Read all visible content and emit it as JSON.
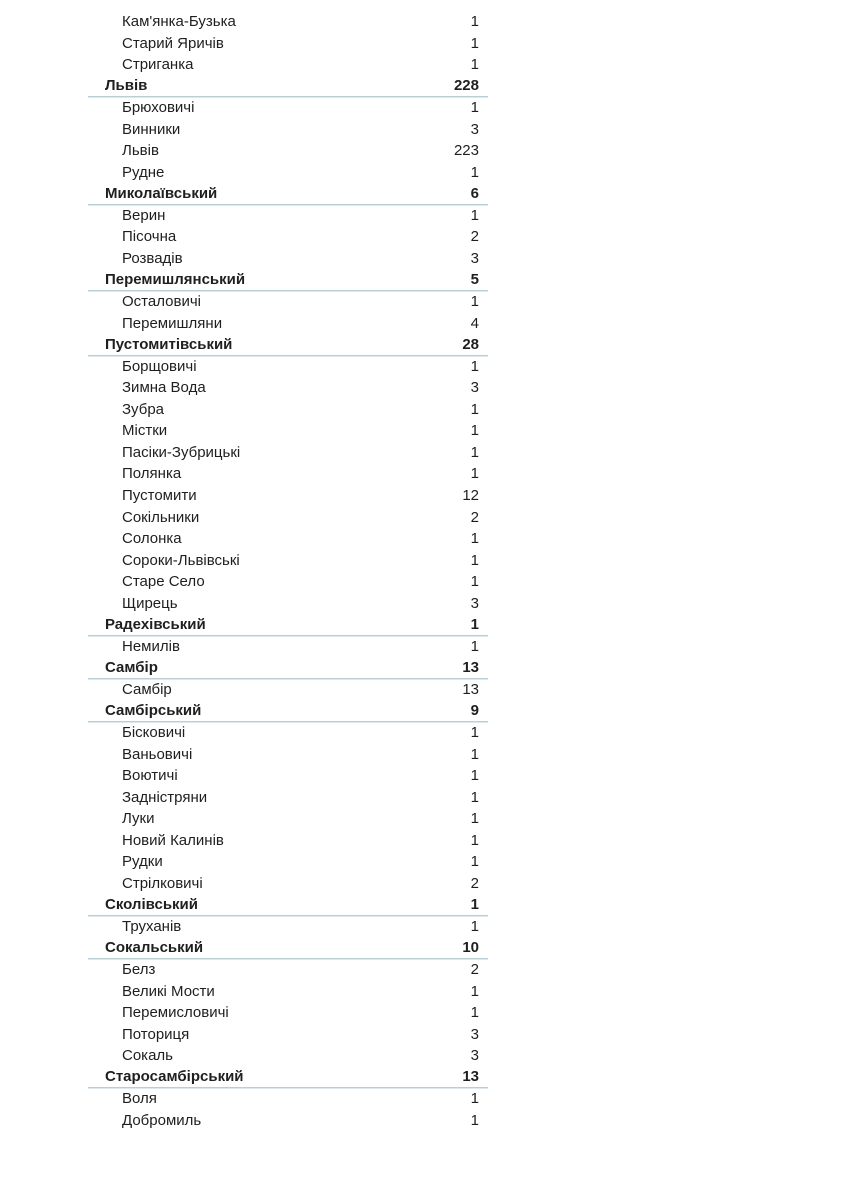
{
  "document": {
    "description": "Page of a report listing settlements of Lviv oblast districts with case counts",
    "columns": [
      "settlement",
      "count"
    ]
  },
  "colors": {
    "page_background": "#ffffff",
    "text": "#1f1f1f",
    "group_divider_dark": "#bccdd6",
    "group_divider_light": "#dde9ee"
  },
  "table": {
    "rows": [
      {
        "label": "Кам'янка-Бузька",
        "value": "1",
        "level": "item"
      },
      {
        "label": "Старий Яричів",
        "value": "1",
        "level": "item"
      },
      {
        "label": "Стриганка",
        "value": "1",
        "level": "item"
      },
      {
        "label": "Львів",
        "value": "228",
        "level": "group"
      },
      {
        "label": "Брюховичі",
        "value": "1",
        "level": "item"
      },
      {
        "label": "Винники",
        "value": "3",
        "level": "item"
      },
      {
        "label": "Львів",
        "value": "223",
        "level": "item"
      },
      {
        "label": "Рудне",
        "value": "1",
        "level": "item"
      },
      {
        "label": "Миколаївський",
        "value": "6",
        "level": "group"
      },
      {
        "label": "Верин",
        "value": "1",
        "level": "item"
      },
      {
        "label": "Пісочна",
        "value": "2",
        "level": "item"
      },
      {
        "label": "Розвадів",
        "value": "3",
        "level": "item"
      },
      {
        "label": "Перемишлянський",
        "value": "5",
        "level": "group"
      },
      {
        "label": "Осталовичі",
        "value": "1",
        "level": "item"
      },
      {
        "label": "Перемишляни",
        "value": "4",
        "level": "item"
      },
      {
        "label": "Пустомитівський",
        "value": "28",
        "level": "group"
      },
      {
        "label": "Борщовичі",
        "value": "1",
        "level": "item"
      },
      {
        "label": "Зимна Вода",
        "value": "3",
        "level": "item"
      },
      {
        "label": "Зубра",
        "value": "1",
        "level": "item"
      },
      {
        "label": "Містки",
        "value": "1",
        "level": "item"
      },
      {
        "label": "Пасіки-Зубрицькі",
        "value": "1",
        "level": "item"
      },
      {
        "label": "Полянка",
        "value": "1",
        "level": "item"
      },
      {
        "label": "Пустомити",
        "value": "12",
        "level": "item"
      },
      {
        "label": "Сокільники",
        "value": "2",
        "level": "item"
      },
      {
        "label": "Солонка",
        "value": "1",
        "level": "item"
      },
      {
        "label": "Сороки-Львівські",
        "value": "1",
        "level": "item"
      },
      {
        "label": "Старе Село",
        "value": "1",
        "level": "item"
      },
      {
        "label": "Щирець",
        "value": "3",
        "level": "item"
      },
      {
        "label": "Радехівський",
        "value": "1",
        "level": "group"
      },
      {
        "label": "Немилів",
        "value": "1",
        "level": "item"
      },
      {
        "label": "Самбір",
        "value": "13",
        "level": "group"
      },
      {
        "label": "Самбір",
        "value": "13",
        "level": "item"
      },
      {
        "label": "Самбірський",
        "value": "9",
        "level": "group"
      },
      {
        "label": "Бісковичі",
        "value": "1",
        "level": "item"
      },
      {
        "label": "Ваньовичі",
        "value": "1",
        "level": "item"
      },
      {
        "label": "Воютичі",
        "value": "1",
        "level": "item"
      },
      {
        "label": "Задністряни",
        "value": "1",
        "level": "item"
      },
      {
        "label": "Луки",
        "value": "1",
        "level": "item"
      },
      {
        "label": "Новий Калинів",
        "value": "1",
        "level": "item"
      },
      {
        "label": "Рудки",
        "value": "1",
        "level": "item"
      },
      {
        "label": "Стрілковичі",
        "value": "2",
        "level": "item"
      },
      {
        "label": "Сколівський",
        "value": "1",
        "level": "group"
      },
      {
        "label": "Труханів",
        "value": "1",
        "level": "item"
      },
      {
        "label": "Сокальський",
        "value": "10",
        "level": "group"
      },
      {
        "label": "Белз",
        "value": "2",
        "level": "item"
      },
      {
        "label": "Великі Мости",
        "value": "1",
        "level": "item"
      },
      {
        "label": "Перемисловичі",
        "value": "1",
        "level": "item"
      },
      {
        "label": "Поториця",
        "value": "3",
        "level": "item"
      },
      {
        "label": "Сокаль",
        "value": "3",
        "level": "item"
      },
      {
        "label": "Старосамбірський",
        "value": "13",
        "level": "group"
      },
      {
        "label": "Воля",
        "value": "1",
        "level": "item"
      },
      {
        "label": "Добромиль",
        "value": "1",
        "level": "item"
      }
    ]
  }
}
